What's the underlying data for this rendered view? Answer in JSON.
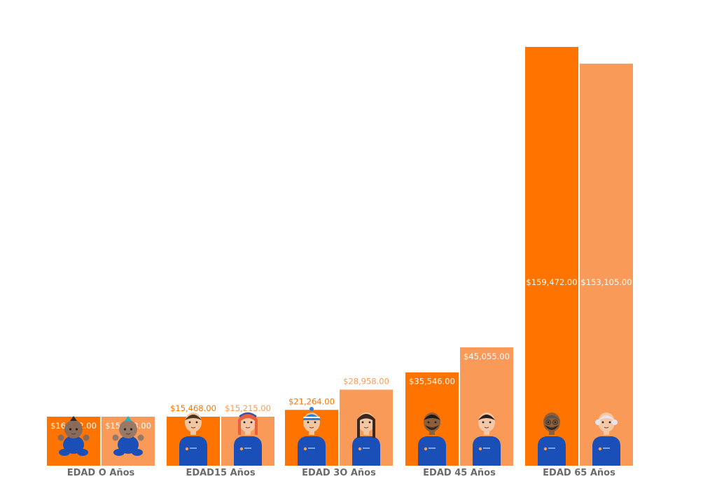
{
  "chart_data": {
    "type": "bar",
    "categories": [
      "EDAD O Años",
      "EDAD15 Años",
      "EDAD 3O Años",
      "EDAD 45 Años",
      "EDAD 65 Años"
    ],
    "series": [
      {
        "values": [
          16202,
          15468,
          21264,
          35546,
          159472
        ],
        "labels": [
          "$16,202.00",
          "$15,468.00",
          "$21,264.00",
          "$35,546.00",
          "$159,472.00"
        ]
      },
      {
        "values": [
          15683,
          15215,
          28958,
          45055,
          153105
        ],
        "labels": [
          "$15,683.00",
          "$15,215.00",
          "$28,958.00",
          "$45,055.00",
          "$153,105.00"
        ]
      }
    ],
    "ylim": [
      0,
      165000
    ],
    "grid": false,
    "legend": "none",
    "value_labels_inside": [
      true,
      false,
      false,
      true,
      true
    ],
    "colors": {
      "series1": "#FF7300",
      "series2": "#FA9A58",
      "figure_shirt": "#1B4FB8",
      "category_text": "#6B6B6B"
    },
    "figures": [
      {
        "kind": "baby",
        "skin": "#8A6A58",
        "hair": "#2E2A2A"
      },
      {
        "kind": "baby",
        "skin": "#9A7866",
        "hair": "#2AB5C0"
      },
      {
        "kind": "young",
        "skin": "#F2C6A0",
        "hair": "#4A3426"
      },
      {
        "kind": "young",
        "skin": "#F4C8A6",
        "hair": "#E9603B"
      },
      {
        "kind": "adult",
        "skin": "#F2C6A0",
        "hair": "#2F7FD6"
      },
      {
        "kind": "adult",
        "skin": "#F2C6A0",
        "hair": "#3A2720"
      },
      {
        "kind": "adult",
        "skin": "#8B5E3C",
        "hair": "#1E1A18"
      },
      {
        "kind": "adult",
        "skin": "#F4C8A6",
        "hair": "#2A1E1A"
      },
      {
        "kind": "senior",
        "skin": "#8B5E3C",
        "hair": "#5A544E"
      },
      {
        "kind": "senior",
        "skin": "#F4C8A6",
        "hair": "#E7E4EE"
      }
    ]
  }
}
